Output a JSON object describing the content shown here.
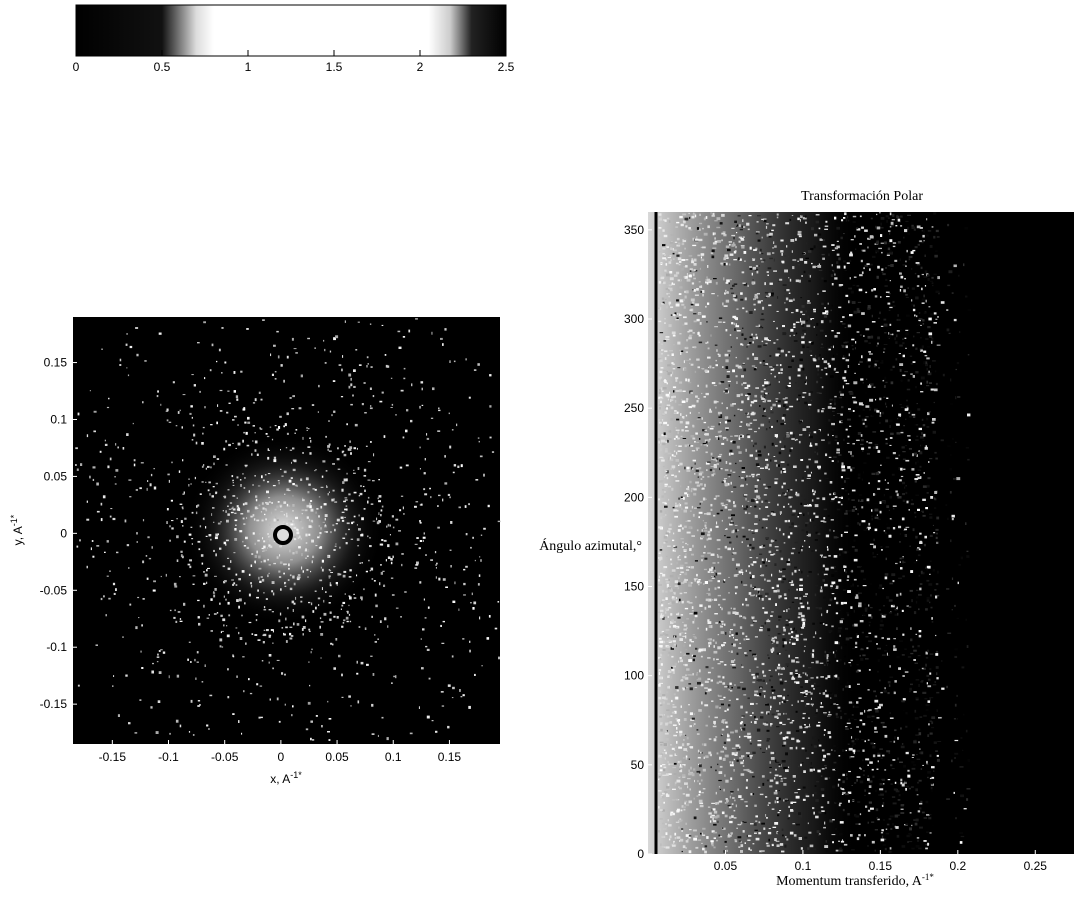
{
  "colorbar": {
    "ticks": [
      "0",
      "0.5",
      "1",
      "1.5",
      "2",
      "2.5"
    ],
    "range": [
      0,
      2.5
    ],
    "colormap": "dark-light-dark"
  },
  "chart_data": [
    {
      "type": "heatmap",
      "title": "",
      "xlabel": "x, A",
      "xlabel_sup": "-1*",
      "ylabel": "y, A",
      "ylabel_sup": "-1*",
      "xlim": [
        -0.185,
        0.195
      ],
      "ylim": [
        -0.185,
        0.19
      ],
      "xticks": [
        "-0.15",
        "-0.1",
        "-0.05",
        "0",
        "0.05",
        "0.1",
        "0.15"
      ],
      "yticks": [
        "0.15",
        "0.1",
        "0.05",
        "0",
        "-0.05",
        "-0.1",
        "-0.15"
      ],
      "xtick_values": [
        -0.15,
        -0.1,
        -0.05,
        0,
        0.05,
        0.1,
        0.15
      ],
      "ytick_values": [
        0.15,
        0.1,
        0.05,
        0,
        -0.05,
        -0.1,
        -0.15
      ],
      "description_pattern": "radial scattering intensity, bright diffuse center with dark ring at origin, sparse bright speckles outward"
    },
    {
      "type": "heatmap",
      "title": "Transformación Polar",
      "xlabel": "Momentum transferido, A",
      "xlabel_sup": "-1*",
      "ylabel": "Ángulo azimutal,°",
      "xlim": [
        0,
        0.275
      ],
      "ylim": [
        0,
        360
      ],
      "xticks": [
        "0.05",
        "0.1",
        "0.15",
        "0.2",
        "0.25"
      ],
      "yticks": [
        "0",
        "50",
        "100",
        "150",
        "200",
        "250",
        "300",
        "350"
      ],
      "xtick_values": [
        0.05,
        0.1,
        0.15,
        0.2,
        0.25
      ],
      "ytick_values": [
        0,
        50,
        100,
        150,
        200,
        250,
        300,
        350
      ],
      "description_pattern": "bright speckle near low momentum, fading to dark beyond ~0.19"
    }
  ]
}
